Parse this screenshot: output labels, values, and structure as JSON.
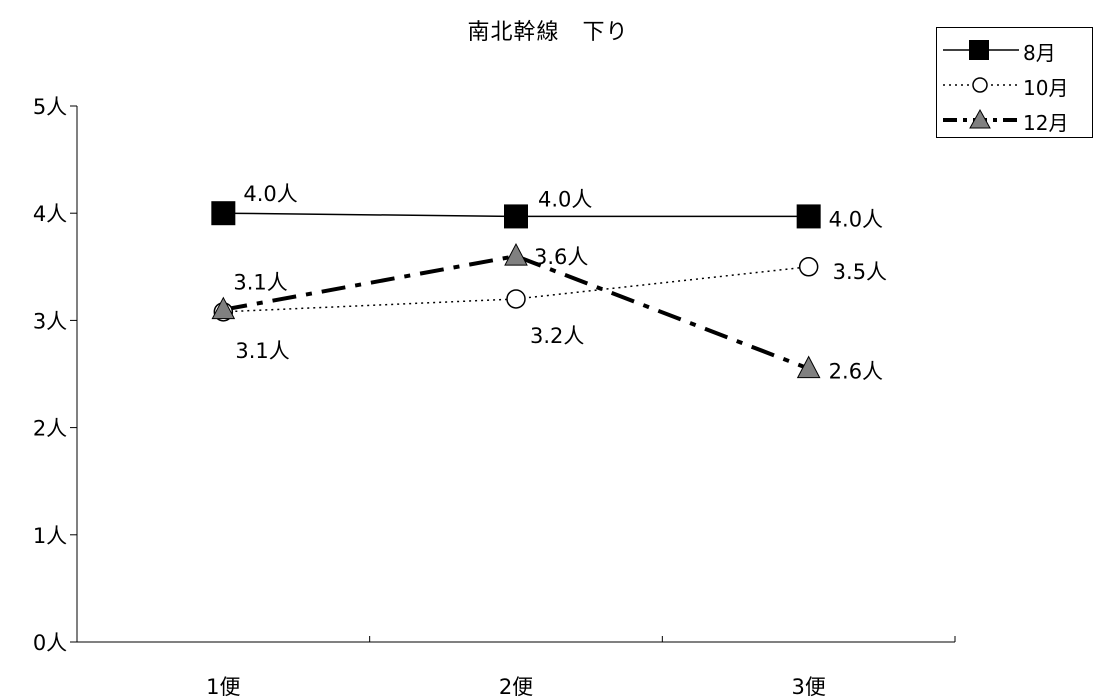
{
  "chart_data": {
    "type": "line",
    "title": "南北幹線　下り",
    "categories": [
      "1便",
      "2便",
      "3便"
    ],
    "ylim": [
      0,
      5
    ],
    "yticks": [
      "0人",
      "1人",
      "2人",
      "3人",
      "4人",
      "5人"
    ],
    "series": [
      {
        "name": "8月",
        "values": [
          4.0,
          3.97,
          3.97
        ],
        "labels": [
          "4.0人",
          "4.0人",
          "4.0人"
        ],
        "marker": "square",
        "line": "solid",
        "color": "#000000"
      },
      {
        "name": "10月",
        "values": [
          3.08,
          3.2,
          3.5
        ],
        "labels": [
          "3.1人",
          "3.2人",
          "3.5人"
        ],
        "marker": "circle",
        "line": "dotted",
        "color": "#000000"
      },
      {
        "name": "12月",
        "values": [
          3.1,
          3.6,
          2.55
        ],
        "labels": [
          "3.1人",
          "3.6人",
          "2.6人"
        ],
        "marker": "triangle",
        "line": "dashdot",
        "color": "#808080"
      }
    ],
    "grid": false,
    "legend_position": "top-right"
  }
}
